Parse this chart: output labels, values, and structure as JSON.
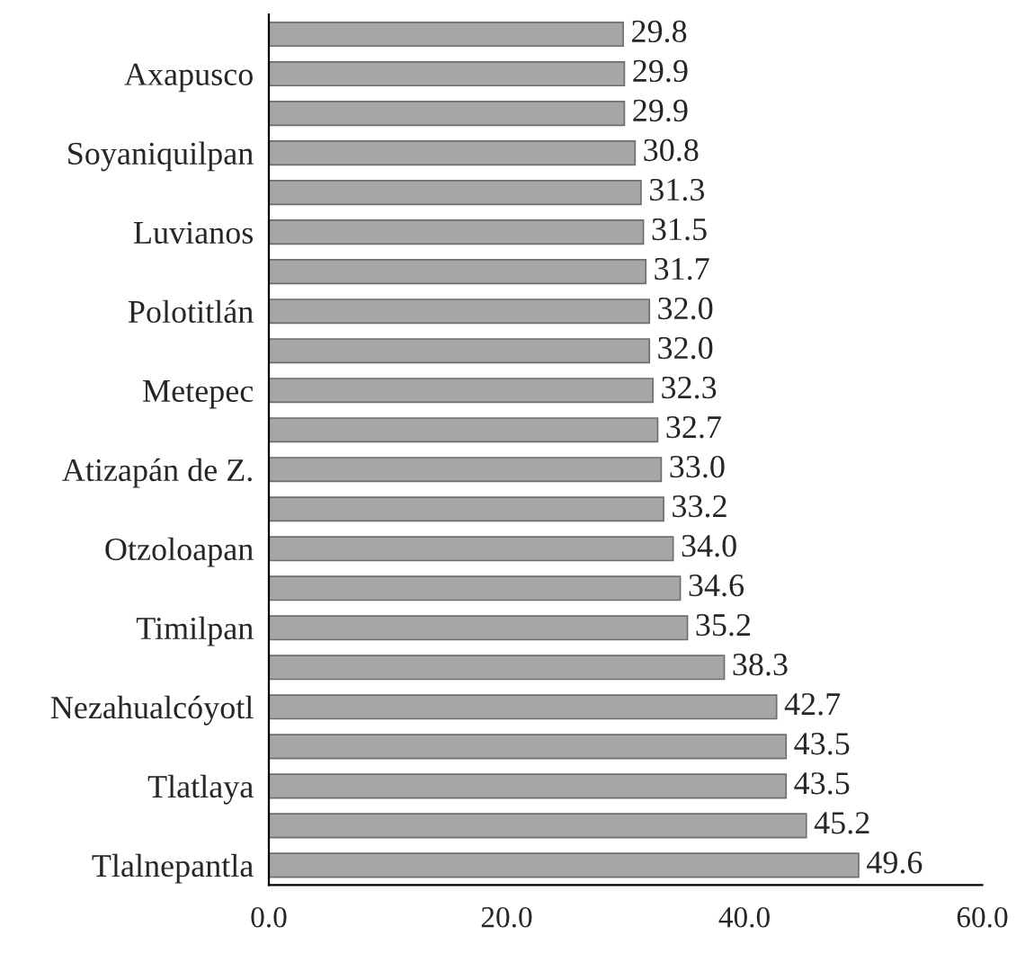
{
  "chart_data": {
    "type": "bar",
    "orientation": "horizontal",
    "categories": [
      null,
      "Axapusco",
      null,
      "Soyaniquilpan",
      null,
      "Luvianos",
      null,
      "Polotitlán",
      null,
      "Metepec",
      null,
      "Atizapán de Z.",
      null,
      "Otzoloapan",
      null,
      "Timilpan",
      null,
      "Nezahualcóyotl",
      null,
      "Tlatlaya",
      null,
      "Tlalnepantla"
    ],
    "values": [
      29.8,
      29.9,
      29.9,
      30.8,
      31.3,
      31.5,
      31.7,
      32.0,
      32.0,
      32.3,
      32.7,
      33.0,
      33.2,
      34.0,
      34.6,
      35.2,
      38.3,
      42.7,
      43.5,
      43.5,
      45.2,
      49.6
    ],
    "value_labels": [
      "29.8",
      "29.9",
      "29.9",
      "30.8",
      "31.3",
      "31.5",
      "31.7",
      "32.0",
      "32.0",
      "32.3",
      "32.7",
      "33.0",
      "33.2",
      "34.0",
      "34.6",
      "35.2",
      "38.3",
      "42.7",
      "43.5",
      "43.5",
      "45.2",
      "49.6"
    ],
    "color": "#a6a6a6",
    "xlim": [
      0,
      60
    ],
    "xticks": [
      {
        "value": 0,
        "label": "0.0"
      },
      {
        "value": 20,
        "label": "20.0"
      },
      {
        "value": 40,
        "label": "40.0"
      },
      {
        "value": 60,
        "label": "60.0"
      }
    ],
    "grid": false,
    "legend": false
  }
}
